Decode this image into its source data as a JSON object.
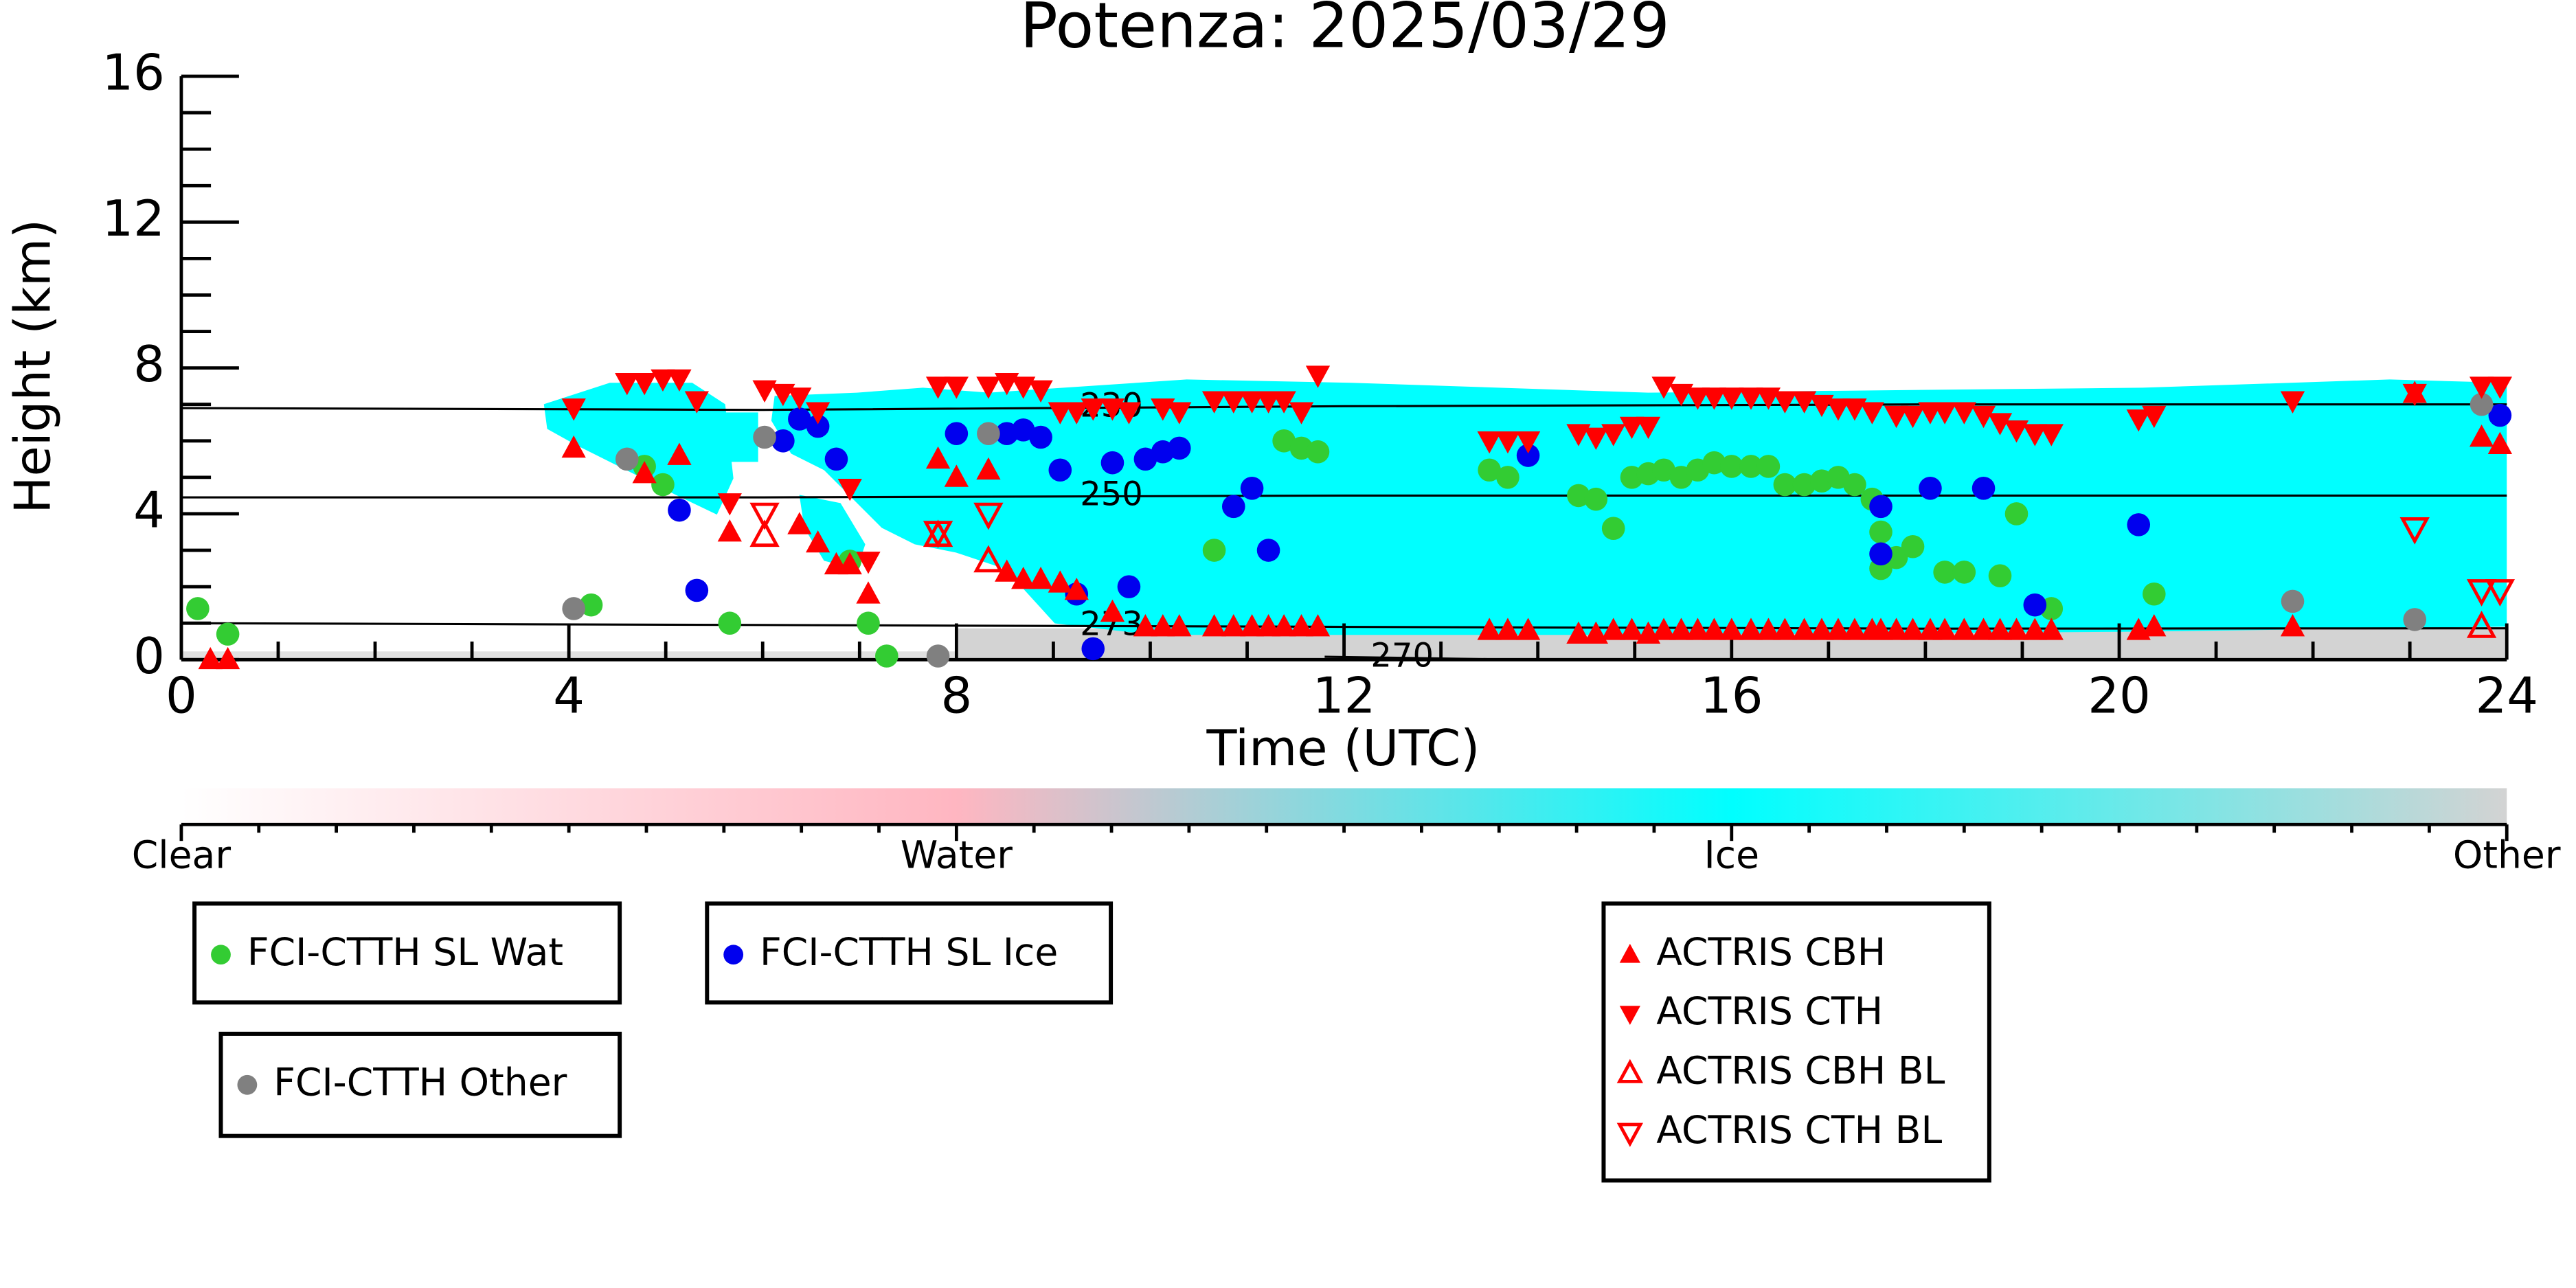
{
  "chart_data": {
    "type": "scatter",
    "title": "Potenza: 2025/03/29",
    "x_label": "Time (UTC)",
    "y_label": "Height (km)",
    "xlim": [
      0,
      24
    ],
    "xticks": [
      0,
      4,
      8,
      12,
      16,
      20,
      24
    ],
    "ylim": [
      0,
      16
    ],
    "yticks": [
      0,
      4,
      8,
      12,
      16
    ],
    "grid": false,
    "contours": [
      {
        "level": 230,
        "x": [
          0,
          6,
          12,
          18,
          24
        ],
        "y": [
          6.9,
          6.85,
          6.95,
          7.0,
          7.0
        ]
      },
      {
        "level": 250,
        "x": [
          0,
          6,
          12,
          18,
          24
        ],
        "y": [
          4.45,
          4.45,
          4.5,
          4.5,
          4.5
        ]
      },
      {
        "level": 273,
        "x": [
          0,
          6,
          12,
          18,
          24
        ],
        "y": [
          1.0,
          0.95,
          0.9,
          0.85,
          0.86
        ]
      },
      {
        "level": 270,
        "x": [
          11.8,
          12.6,
          13.8
        ],
        "y": [
          0.08,
          0.05,
          0.0
        ]
      }
    ],
    "colorbar": {
      "labels": [
        "Clear",
        "Water",
        "Ice",
        "Other"
      ]
    },
    "series": [
      {
        "name": "FCI-CTTH SL Wat",
        "color": "#33cc33",
        "marker": "circle",
        "x": [
          0.17,
          0.48,
          4.23,
          4.78,
          4.97,
          5.66,
          6.9,
          7.09,
          7.28,
          10.66,
          11.38,
          11.56,
          11.73,
          13.5,
          13.69,
          14.42,
          14.6,
          14.78,
          14.97,
          15.14,
          15.3,
          15.48,
          15.65,
          15.82,
          16.0,
          16.2,
          16.38,
          16.55,
          16.75,
          16.93,
          17.1,
          17.27,
          17.45,
          17.54,
          17.54,
          17.7,
          17.87,
          18.2,
          18.4,
          18.77,
          18.94,
          19.3,
          20.36
        ],
        "y": [
          1.4,
          0.7,
          1.5,
          5.3,
          4.8,
          1.0,
          2.7,
          1.0,
          0.1,
          3.0,
          6.0,
          5.8,
          5.7,
          5.2,
          5.0,
          4.5,
          4.4,
          3.6,
          5.0,
          5.1,
          5.2,
          5.0,
          5.2,
          5.4,
          5.3,
          5.3,
          5.3,
          4.8,
          4.8,
          4.9,
          5.0,
          4.8,
          4.4,
          3.5,
          2.5,
          2.8,
          3.1,
          2.4,
          2.4,
          2.3,
          4.0,
          1.4,
          1.8
        ]
      },
      {
        "name": "FCI-CTTH SL Ice",
        "color": "#0000ee",
        "marker": "circle",
        "x": [
          5.14,
          5.32,
          6.21,
          6.38,
          6.57,
          6.76,
          8.0,
          8.52,
          8.69,
          8.87,
          9.07,
          9.24,
          9.41,
          9.61,
          9.78,
          9.95,
          10.13,
          10.3,
          10.86,
          11.05,
          11.22,
          13.9,
          17.54,
          17.54,
          18.05,
          18.6,
          19.13,
          20.2,
          23.93
        ],
        "y": [
          4.1,
          1.9,
          6.0,
          6.6,
          6.4,
          5.5,
          6.2,
          6.2,
          6.3,
          6.1,
          5.2,
          1.8,
          0.3,
          5.4,
          2.0,
          5.5,
          5.7,
          5.8,
          4.2,
          4.7,
          3.0,
          5.6,
          4.2,
          2.9,
          4.7,
          4.7,
          1.5,
          3.7,
          6.7
        ]
      },
      {
        "name": "FCI-CTTH Other",
        "color": "#808080",
        "marker": "circle",
        "x": [
          4.05,
          4.6,
          6.02,
          7.81,
          8.33,
          21.79,
          23.05,
          23.74
        ],
        "y": [
          1.4,
          5.5,
          6.1,
          0.1,
          6.2,
          1.6,
          1.1,
          7.0
        ]
      },
      {
        "name": "ACTRIS CBH",
        "color": "#ff0000",
        "marker": "triangle-up",
        "x": [
          0.3,
          0.48,
          4.05,
          4.78,
          5.14,
          5.66,
          6.38,
          6.57,
          6.76,
          6.9,
          7.09,
          7.81,
          8.0,
          8.33,
          8.52,
          8.69,
          8.87,
          9.07,
          9.24,
          9.61,
          9.95,
          10.13,
          10.3,
          10.66,
          10.86,
          11.05,
          11.22,
          11.38,
          11.56,
          11.73,
          13.5,
          13.69,
          13.9,
          14.42,
          14.6,
          14.78,
          14.97,
          15.14,
          15.3,
          15.48,
          15.65,
          15.82,
          16.0,
          16.2,
          16.38,
          16.55,
          16.75,
          16.93,
          17.1,
          17.27,
          17.45,
          17.54,
          17.7,
          17.87,
          18.05,
          18.2,
          18.4,
          18.6,
          18.77,
          18.94,
          19.13,
          19.3,
          20.2,
          20.36,
          21.79,
          23.05,
          23.74,
          23.93
        ],
        "y": [
          0,
          0,
          5.8,
          5.1,
          5.6,
          3.5,
          3.7,
          3.2,
          2.6,
          2.6,
          1.8,
          5.5,
          5.0,
          5.2,
          2.4,
          2.2,
          2.2,
          2.1,
          1.9,
          1.3,
          0.9,
          0.9,
          0.9,
          0.9,
          0.9,
          0.9,
          0.9,
          0.9,
          0.9,
          0.9,
          0.8,
          0.8,
          0.8,
          0.7,
          0.7,
          0.8,
          0.8,
          0.7,
          0.8,
          0.8,
          0.8,
          0.8,
          0.8,
          0.8,
          0.8,
          0.8,
          0.8,
          0.8,
          0.8,
          0.8,
          0.8,
          0.8,
          0.8,
          0.8,
          0.8,
          0.8,
          0.8,
          0.8,
          0.8,
          0.8,
          0.8,
          0.8,
          0.8,
          0.9,
          0.9,
          7.3,
          6.1,
          5.9
        ]
      },
      {
        "name": "ACTRIS CTH",
        "color": "#ff0000",
        "marker": "triangle-down",
        "x": [
          4.05,
          4.6,
          4.78,
          4.97,
          5.14,
          5.32,
          5.66,
          6.02,
          6.21,
          6.38,
          6.57,
          6.9,
          7.09,
          7.81,
          8.0,
          8.33,
          8.52,
          8.69,
          8.87,
          9.07,
          9.24,
          9.41,
          9.61,
          9.78,
          10.13,
          10.3,
          10.66,
          10.86,
          11.05,
          11.22,
          11.38,
          11.56,
          11.73,
          13.5,
          13.69,
          13.9,
          14.42,
          14.6,
          14.78,
          14.97,
          15.14,
          15.3,
          15.48,
          15.65,
          15.82,
          16.0,
          16.2,
          16.38,
          16.55,
          16.75,
          16.93,
          17.1,
          17.27,
          17.45,
          17.7,
          17.87,
          18.05,
          18.2,
          18.4,
          18.6,
          18.77,
          18.94,
          19.13,
          19.3,
          20.2,
          20.36,
          21.79,
          23.05,
          23.74,
          23.93
        ],
        "y": [
          6.9,
          7.6,
          7.6,
          7.7,
          7.7,
          7.1,
          4.3,
          7.4,
          7.3,
          7.2,
          6.8,
          4.7,
          2.7,
          7.5,
          7.5,
          7.5,
          7.6,
          7.5,
          7.4,
          6.8,
          6.8,
          6.9,
          6.9,
          6.8,
          6.9,
          6.8,
          7.1,
          7.1,
          7.1,
          7.1,
          7.1,
          6.8,
          7.8,
          6.0,
          6.0,
          6.0,
          6.2,
          6.1,
          6.2,
          6.4,
          6.4,
          7.5,
          7.3,
          7.2,
          7.2,
          7.2,
          7.2,
          7.2,
          7.1,
          7.1,
          7.0,
          6.9,
          6.9,
          6.8,
          6.7,
          6.7,
          6.8,
          6.8,
          6.8,
          6.7,
          6.5,
          6.3,
          6.2,
          6.2,
          6.6,
          6.7,
          7.1,
          7.3,
          7.5,
          7.5
        ]
      },
      {
        "name": "ACTRIS CBH BL",
        "color": "#ff0000",
        "marker": "triangle-up-open",
        "x": [
          6.02,
          7.81,
          8.33,
          23.74
        ],
        "y": [
          3.4,
          3.4,
          2.7,
          0.9
        ]
      },
      {
        "name": "ACTRIS CTH BL",
        "color": "#ff0000",
        "marker": "triangle-down-open",
        "x": [
          6.02,
          7.81,
          8.33,
          23.05,
          23.74,
          23.93
        ],
        "y": [
          4.0,
          3.5,
          4.0,
          3.6,
          1.9,
          1.9
        ]
      }
    ]
  }
}
